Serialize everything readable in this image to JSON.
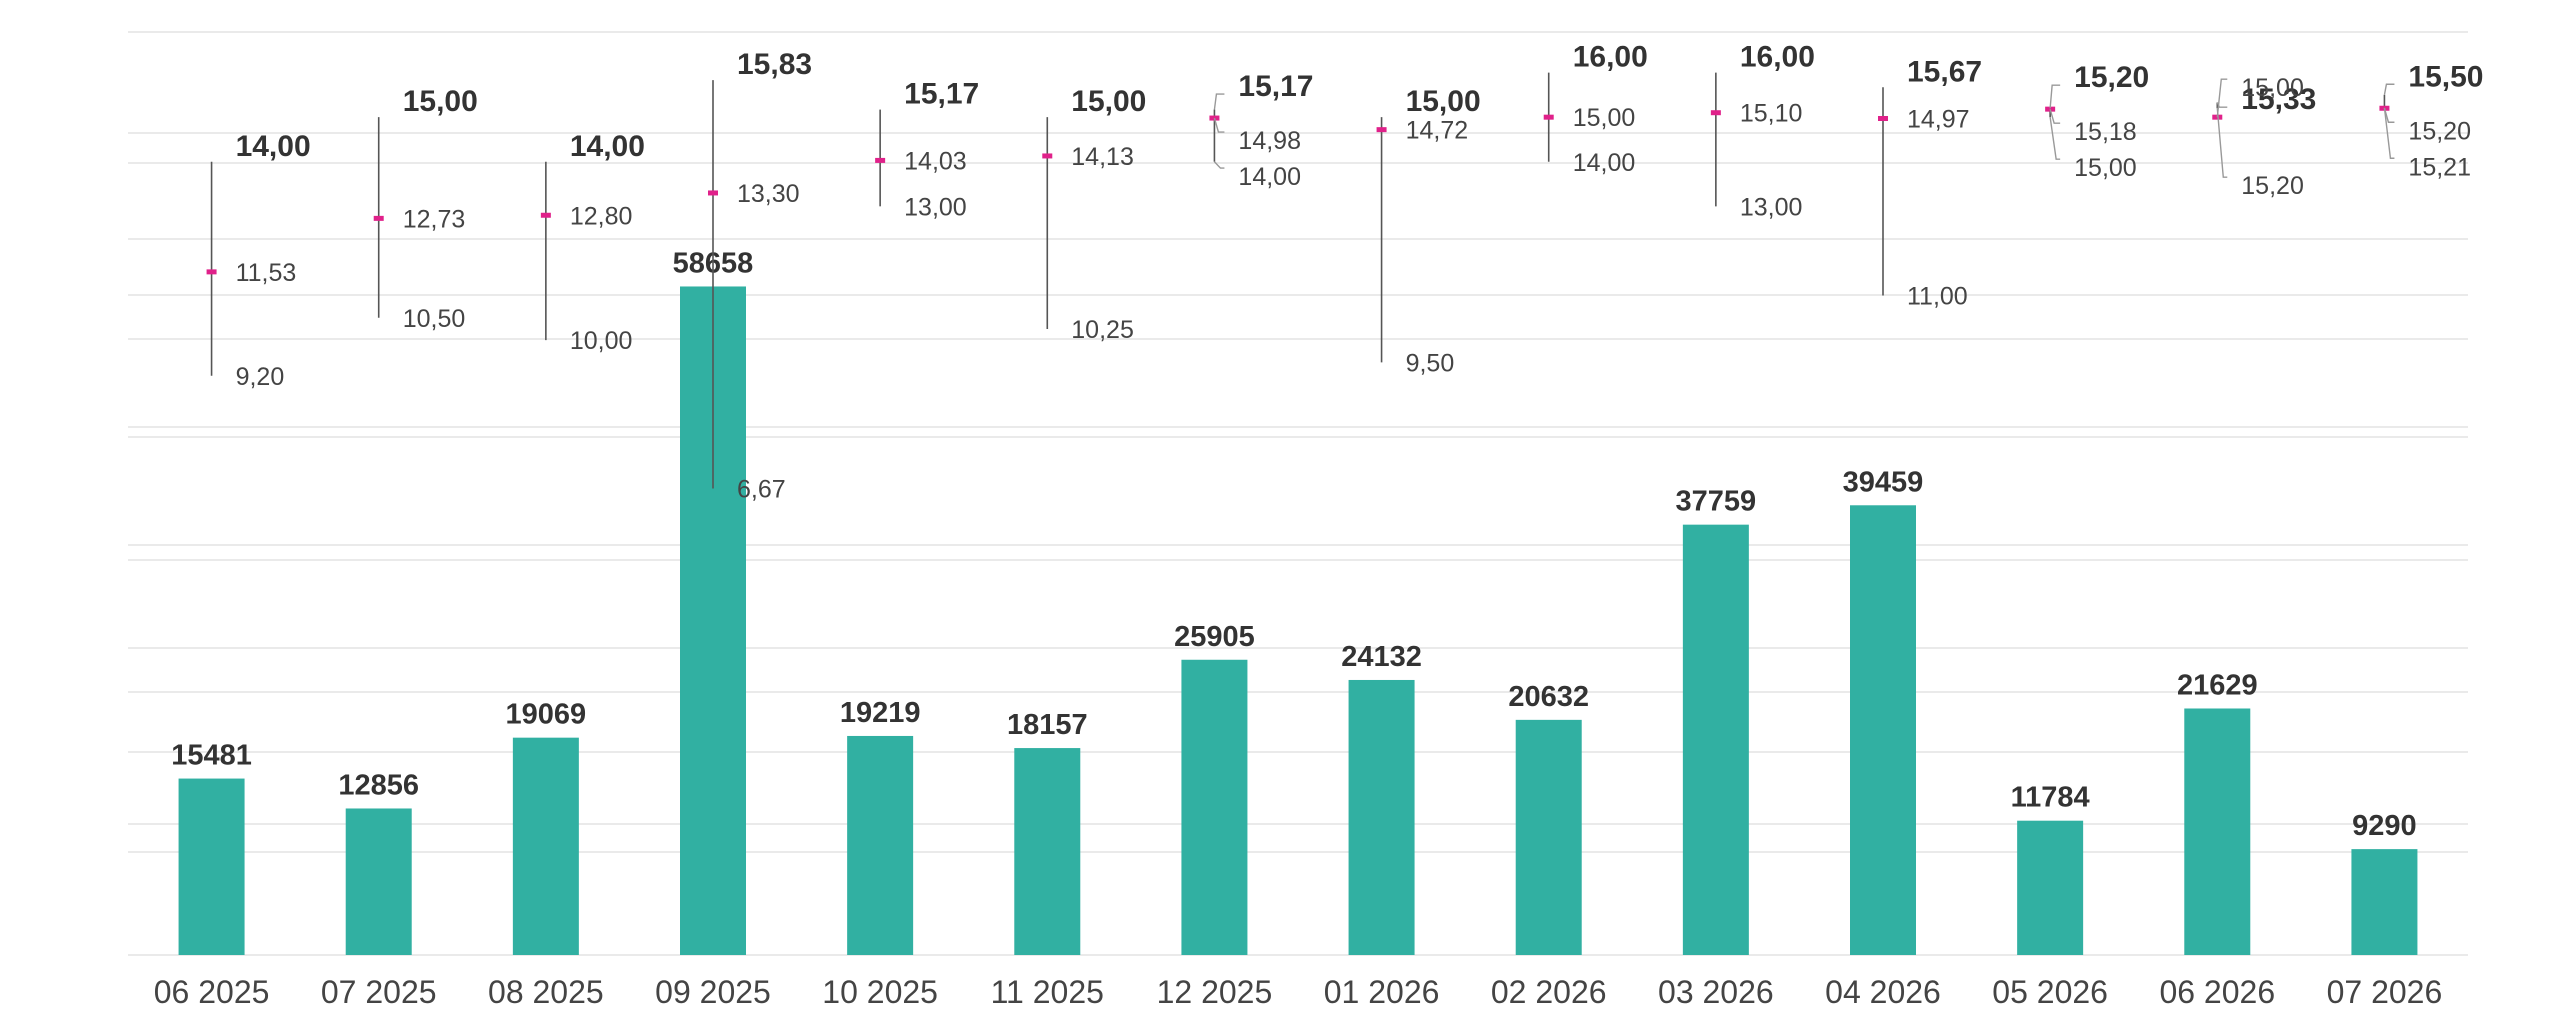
{
  "chart_data": {
    "type": "bar",
    "title": "",
    "xlabel": "",
    "ylabel": "",
    "grid": true,
    "legend": "none",
    "colors": {
      "bar": "#31b0a2",
      "mean_marker": "#e0218a",
      "range_line": "#555555",
      "grid": "#e3e3e3"
    },
    "categories": [
      "06 2025",
      "07 2025",
      "08 2025",
      "09 2025",
      "10 2025",
      "11 2025",
      "12 2025",
      "01 2026",
      "02 2026",
      "03 2026",
      "04 2026",
      "05 2026",
      "06 2026",
      "07 2026"
    ],
    "bars": {
      "values": [
        15481,
        12856,
        19069,
        58658,
        19219,
        18157,
        25905,
        24132,
        20632,
        37759,
        39459,
        11784,
        21629,
        9290
      ],
      "labels": [
        "15481",
        "12856",
        "19069",
        "58658",
        "19219",
        "18157",
        "25905",
        "24132",
        "20632",
        "37759",
        "39459",
        "11784",
        "21629",
        "9290"
      ],
      "ylim": [
        0,
        68000
      ]
    },
    "ranges": {
      "max": [
        14.0,
        15.0,
        14.0,
        15.83,
        15.17,
        15.0,
        15.17,
        15.0,
        16.0,
        16.0,
        15.67,
        15.2,
        15.33,
        15.5
      ],
      "mean": [
        11.53,
        12.73,
        12.8,
        13.3,
        14.03,
        14.13,
        14.98,
        14.72,
        15.0,
        15.1,
        14.97,
        15.18,
        15.0,
        15.2
      ],
      "min": [
        9.2,
        10.5,
        10.0,
        6.67,
        13.0,
        10.25,
        14.0,
        9.5,
        14.0,
        13.0,
        11.0,
        15.0,
        15.2,
        15.21
      ],
      "max_labels": [
        "14,00",
        "15,00",
        "14,00",
        "15,83",
        "15,17",
        "15,00",
        "15,17",
        "15,00",
        "16,00",
        "16,00",
        "15,67",
        "15,20",
        "15,33",
        "15,50"
      ],
      "mean_labels": [
        "11,53",
        "12,73",
        "12,80",
        "13,30",
        "14,03",
        "14,13",
        "14,98",
        "14,72",
        "15,00",
        "15,10",
        "14,97",
        "15,18",
        "15,00",
        "15,20"
      ],
      "min_labels": [
        "9,20",
        "10,50",
        "10,00",
        "6,67",
        "13,00",
        "10,25",
        "14,00",
        "9,50",
        "14,00",
        "13,00",
        "11,00",
        "15,00",
        "15,20",
        "15,21"
      ],
      "ylim": [
        5,
        17
      ]
    }
  }
}
